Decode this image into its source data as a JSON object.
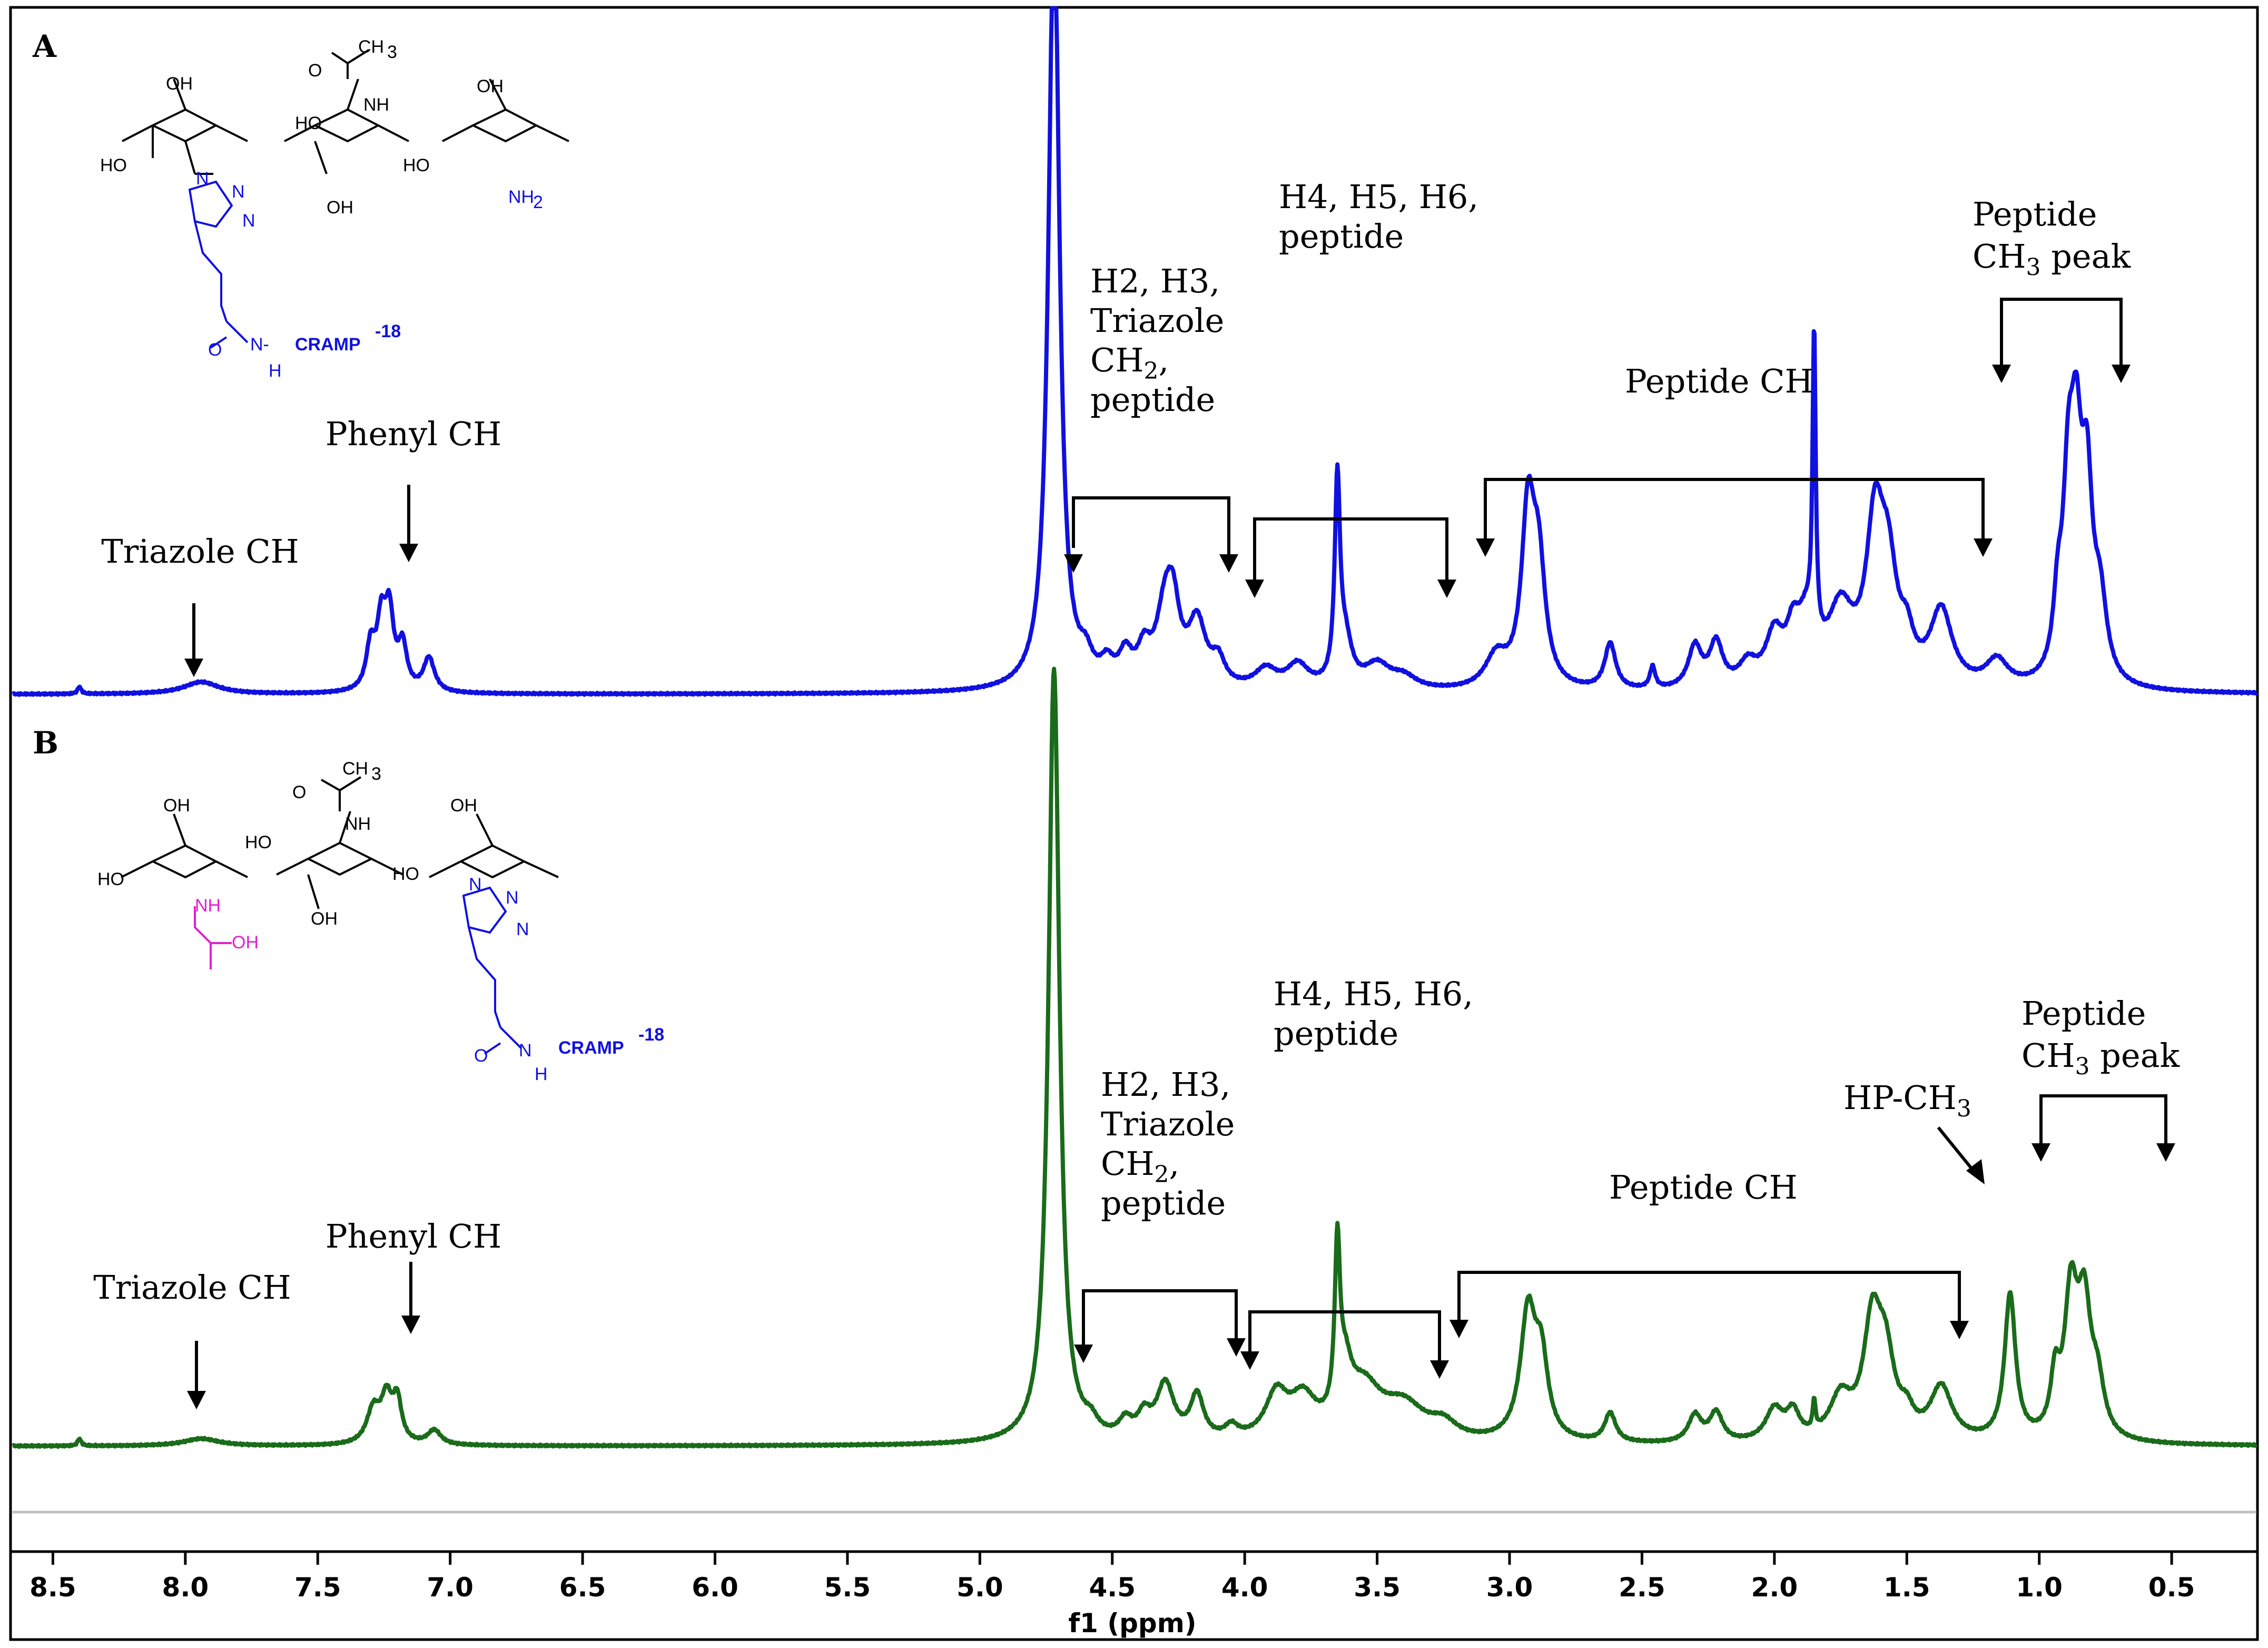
{
  "chart_data": {
    "type": "line",
    "xlabel": "f1 (ppm)",
    "x_reversed": true,
    "xlim": [
      8.65,
      0.18
    ],
    "x_ticks": [
      "8.5",
      "8.0",
      "7.5",
      "7.0",
      "6.5",
      "6.0",
      "5.5",
      "5.0",
      "4.5",
      "4.0",
      "3.5",
      "3.0",
      "2.5",
      "2.0",
      "1.5",
      "1.0",
      "0.5"
    ],
    "colors": {
      "A": "#1010e0",
      "B": "#1a6b1a",
      "pink": "#e020d0"
    },
    "panels": [
      {
        "letter": "A",
        "peaks": [
          [
            8.4,
            0.03,
            0.008
          ],
          [
            7.94,
            0.05,
            0.08
          ],
          [
            7.3,
            0.18,
            0.02
          ],
          [
            7.26,
            0.26,
            0.02
          ],
          [
            7.23,
            0.3,
            0.02
          ],
          [
            7.18,
            0.18,
            0.02
          ],
          [
            7.08,
            0.14,
            0.025
          ],
          [
            4.72,
            3.2,
            0.025
          ],
          [
            4.6,
            0.09,
            0.03
          ],
          [
            4.52,
            0.08,
            0.03
          ],
          [
            4.45,
            0.12,
            0.03
          ],
          [
            4.38,
            0.13,
            0.03
          ],
          [
            4.3,
            0.3,
            0.04
          ],
          [
            4.27,
            0.24,
            0.03
          ],
          [
            4.18,
            0.26,
            0.04
          ],
          [
            4.1,
            0.1,
            0.03
          ],
          [
            3.92,
            0.08,
            0.05
          ],
          [
            3.8,
            0.1,
            0.05
          ],
          [
            3.65,
            0.82,
            0.012
          ],
          [
            3.62,
            0.18,
            0.03
          ],
          [
            3.5,
            0.1,
            0.06
          ],
          [
            3.4,
            0.05,
            0.06
          ],
          [
            3.05,
            0.13,
            0.05
          ],
          [
            2.93,
            0.7,
            0.03
          ],
          [
            2.89,
            0.45,
            0.03
          ],
          [
            2.62,
            0.19,
            0.025
          ],
          [
            2.46,
            0.09,
            0.012
          ],
          [
            2.3,
            0.17,
            0.03
          ],
          [
            2.22,
            0.18,
            0.03
          ],
          [
            2.1,
            0.09,
            0.04
          ],
          [
            2.0,
            0.2,
            0.04
          ],
          [
            1.93,
            0.17,
            0.03
          ],
          [
            1.88,
            0.22,
            0.04
          ],
          [
            1.85,
            1.25,
            0.007
          ],
          [
            1.75,
            0.3,
            0.06
          ],
          [
            1.62,
            0.62,
            0.04
          ],
          [
            1.57,
            0.4,
            0.04
          ],
          [
            1.5,
            0.14,
            0.03
          ],
          [
            1.37,
            0.31,
            0.05
          ],
          [
            1.16,
            0.11,
            0.05
          ],
          [
            0.89,
            0.7,
            0.025
          ],
          [
            0.86,
            0.78,
            0.025
          ],
          [
            0.82,
            0.72,
            0.025
          ],
          [
            0.77,
            0.3,
            0.03
          ],
          [
            0.93,
            0.25,
            0.02
          ]
        ],
        "labels": {
          "triazole": "Triazole CH",
          "phenyl": "Phenyl CH",
          "h2": [
            "H2, H3,",
            "Triazole",
            "CH",
            "2",
            ",",
            "peptide"
          ],
          "h4": [
            "H4, H5, H6,",
            "peptide"
          ],
          "pepch": "Peptide CH",
          "pepch3": [
            "Peptide",
            "CH",
            "3",
            " peak"
          ]
        },
        "molecule": {
          "oh_a": "OH",
          "oh_b": "OH",
          "ho_a": "HO",
          "ho_b": "HO",
          "ho_c": "HO",
          "oh_c": "OH",
          "ch3": "CH",
          "ch3_sub": "3",
          "nh": "NH",
          "o": "O",
          "nh2": "NH",
          "nh2_sub": "2",
          "n1": "N",
          "n2": "N",
          "n3": "N",
          "amide_o": "O",
          "amide_nh": "N-",
          "amide_h": "H",
          "cramp": "CRAMP",
          "cramp_sup": "-18"
        }
      },
      {
        "letter": "B",
        "peaks": [
          [
            8.4,
            0.03,
            0.008
          ],
          [
            7.94,
            0.03,
            0.08
          ],
          [
            7.29,
            0.14,
            0.03
          ],
          [
            7.24,
            0.18,
            0.025
          ],
          [
            7.2,
            0.17,
            0.02
          ],
          [
            7.06,
            0.06,
            0.03
          ],
          [
            4.72,
            3.2,
            0.025
          ],
          [
            4.58,
            0.05,
            0.03
          ],
          [
            4.45,
            0.07,
            0.03
          ],
          [
            4.38,
            0.09,
            0.03
          ],
          [
            4.3,
            0.23,
            0.04
          ],
          [
            4.18,
            0.18,
            0.03
          ],
          [
            4.05,
            0.05,
            0.03
          ],
          [
            3.88,
            0.18,
            0.05
          ],
          [
            3.78,
            0.16,
            0.06
          ],
          [
            3.65,
            0.68,
            0.012
          ],
          [
            3.62,
            0.2,
            0.03
          ],
          [
            3.55,
            0.2,
            0.08
          ],
          [
            3.4,
            0.14,
            0.1
          ],
          [
            3.25,
            0.06,
            0.06
          ],
          [
            2.93,
            0.52,
            0.035
          ],
          [
            2.88,
            0.3,
            0.03
          ],
          [
            2.62,
            0.12,
            0.025
          ],
          [
            2.3,
            0.11,
            0.03
          ],
          [
            2.22,
            0.12,
            0.03
          ],
          [
            2.0,
            0.13,
            0.04
          ],
          [
            1.93,
            0.11,
            0.03
          ],
          [
            1.85,
            0.12,
            0.006
          ],
          [
            1.75,
            0.17,
            0.05
          ],
          [
            1.63,
            0.46,
            0.04
          ],
          [
            1.58,
            0.3,
            0.04
          ],
          [
            1.5,
            0.08,
            0.03
          ],
          [
            1.37,
            0.22,
            0.05
          ],
          [
            1.11,
            0.6,
            0.025
          ],
          [
            0.88,
            0.57,
            0.03
          ],
          [
            0.83,
            0.5,
            0.03
          ],
          [
            0.94,
            0.22,
            0.02
          ],
          [
            0.78,
            0.2,
            0.03
          ]
        ],
        "labels": {
          "triazole": "Triazole CH",
          "phenyl": "Phenyl CH",
          "h2": [
            "H2, H3,",
            "Triazole",
            "CH",
            "2",
            ",",
            "peptide"
          ],
          "h4": [
            "H4, H5, H6,",
            "peptide"
          ],
          "pepch": "Peptide CH",
          "hp": [
            "HP-CH",
            "3"
          ],
          "pepch3": [
            "Peptide",
            "CH",
            "3",
            " peak"
          ]
        },
        "molecule": {
          "oh_a": "OH",
          "ho_a": "HO",
          "ho_b": "HO",
          "oh_b": "OH",
          "ho_c": "HO",
          "oh_c": "OH",
          "ch3": "CH",
          "ch3_sub": "3",
          "nh": "NH",
          "o": "O",
          "pink_nh": "NH",
          "pink_oh": "OH",
          "n1": "N",
          "n2": "N",
          "n3": "N",
          "amide_o": "O",
          "amide_nh": "N",
          "amide_h": "H",
          "cramp": "CRAMP",
          "cramp_sup": "-18"
        }
      }
    ]
  }
}
